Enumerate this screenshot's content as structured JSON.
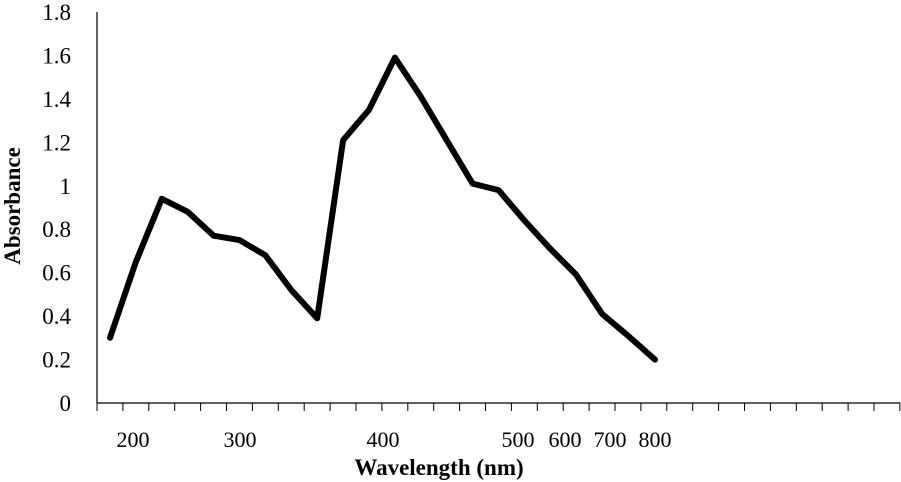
{
  "chart_data": {
    "type": "line",
    "title": "",
    "xlabel": "Wavelength (nm)",
    "ylabel": "Absorbance",
    "ylim": [
      0,
      1.8
    ],
    "yticks": [
      "0",
      "0.2",
      "0.4",
      "0.6",
      "0.8",
      "1",
      "1.2",
      "1.4",
      "1.6",
      "1.8"
    ],
    "xtick_labels": [
      "200",
      "300",
      "400",
      "500",
      "600",
      "700",
      "800"
    ],
    "grid": false,
    "legend": "none",
    "line_color": "#000000",
    "series": [
      {
        "x": [
          200,
          220,
          240,
          260,
          280,
          300,
          320,
          340,
          360,
          380,
          400,
          420,
          440,
          460,
          480,
          500,
          520,
          540,
          560,
          580,
          600,
          800
        ],
        "values": [
          0.3,
          0.65,
          0.94,
          0.88,
          0.77,
          0.75,
          0.68,
          0.52,
          0.39,
          1.21,
          1.35,
          1.59,
          1.41,
          1.21,
          1.01,
          0.98,
          0.84,
          0.71,
          0.59,
          0.41,
          0.31,
          0.2
        ]
      }
    ]
  }
}
